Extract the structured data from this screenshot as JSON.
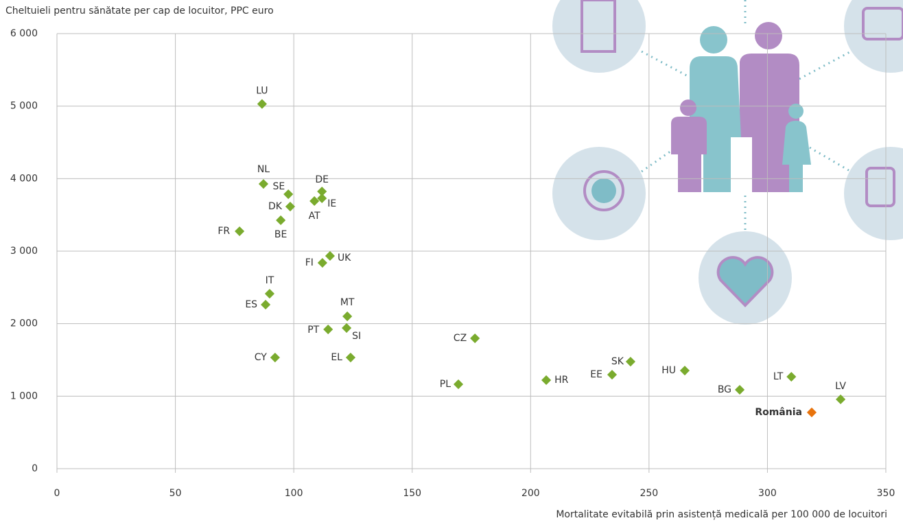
{
  "chart_data": {
    "type": "scatter",
    "y_label": "Cheltuieli pentru sănătate per cap de locuitor, PPC euro",
    "x_label": "Mortalitate evitabilă prin asistență medicală per 100 000 de locuitori",
    "xlim": [
      0,
      350
    ],
    "xticks": [
      0,
      50,
      100,
      150,
      200,
      250,
      300,
      350
    ],
    "ylim": [
      0,
      6000
    ],
    "yticks": [
      0,
      {
        "value": 1000,
        "label": "1 000"
      },
      {
        "value": 2000,
        "label": "2 000"
      },
      {
        "value": 3000,
        "label": "3 000"
      },
      {
        "value": 4000,
        "label": "4 000"
      },
      {
        "value": 5000,
        "label": "5 000"
      },
      {
        "value": 6000,
        "label": "6 000"
      }
    ],
    "grid": true,
    "series": [
      {
        "color": "#7aab2e",
        "labels": [
          "LU",
          "NL",
          "SE",
          "DE",
          "IE",
          "AT",
          "DK",
          "BE",
          "FR",
          "UK",
          "FI",
          "IT",
          "ES",
          "MT",
          "PT",
          "SI",
          "CZ",
          "CY",
          "EL",
          "SK",
          "HU",
          "EE",
          "LT",
          "HR",
          "PL",
          "BG",
          "LV"
        ],
        "x": [
          86.6,
          87.2,
          97.7,
          111.9,
          111.9,
          108.7,
          98.5,
          94.5,
          77.1,
          115.3,
          112.1,
          89.8,
          88.1,
          122.6,
          114.5,
          122.3,
          176.5,
          92.1,
          124.0,
          242.2,
          265.1,
          234.4,
          310.1,
          206.6,
          169.5,
          288.3,
          330.9
        ],
        "values": [
          5030,
          3927,
          3785,
          3823,
          3729,
          3691,
          3615,
          3426,
          3274,
          2934,
          2839,
          2413,
          2262,
          2101,
          1921,
          1940,
          1798,
          1533,
          1533,
          1476,
          1353,
          1296,
          1268,
          1221,
          1164,
          1088,
          956
        ]
      },
      {
        "color": "#e8730c",
        "labels": [
          "România"
        ],
        "x": [
          318.7
        ],
        "values": [
          776
        ]
      }
    ]
  }
}
